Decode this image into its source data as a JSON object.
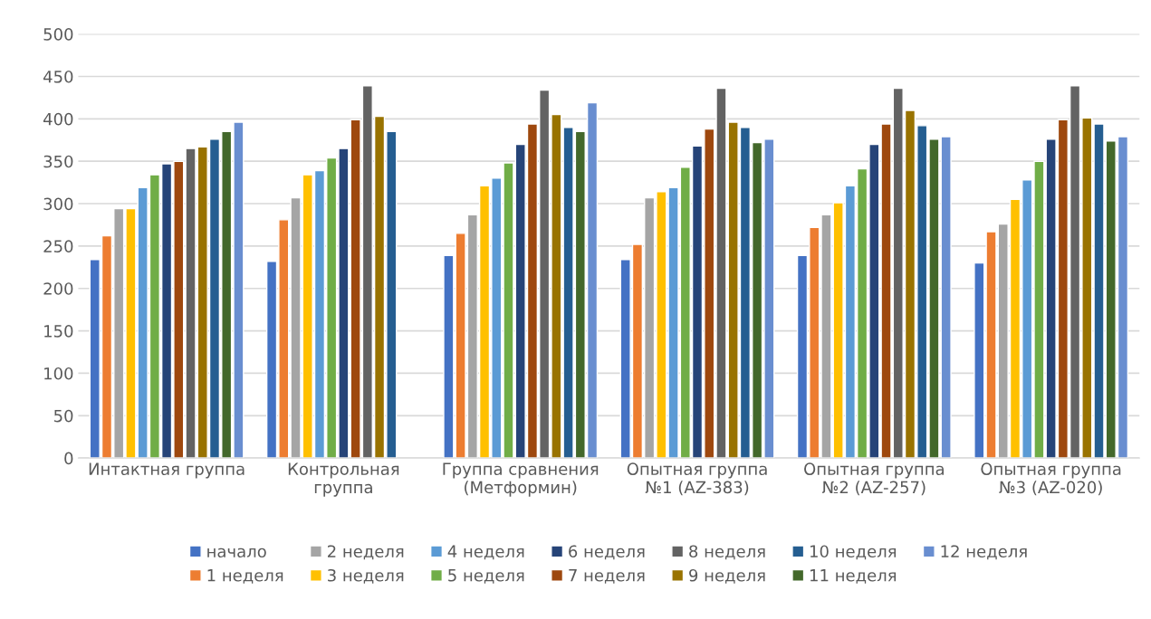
{
  "chart_data": {
    "type": "bar",
    "categories": [
      "Интактная группа",
      "Контрольная\nгруппа",
      "Группа сравнения\n(Метформин)",
      "Опытная группа\n№1 (AZ-383)",
      "Опытная группа\n№2 (AZ-257)",
      "Опытная группа\n№3 (AZ-020)"
    ],
    "series": [
      {
        "name": "начало",
        "color": "#4472c4",
        "values": [
          234,
          232,
          239,
          234,
          239,
          230
        ]
      },
      {
        "name": "1 неделя",
        "color": "#ed7d31",
        "values": [
          262,
          281,
          265,
          252,
          272,
          267
        ]
      },
      {
        "name": "2 неделя",
        "color": "#a5a5a5",
        "values": [
          294,
          307,
          287,
          307,
          287,
          276
        ]
      },
      {
        "name": "3 неделя",
        "color": "#ffc000",
        "values": [
          294,
          334,
          321,
          314,
          301,
          305
        ]
      },
      {
        "name": "4 неделя",
        "color": "#5b9bd5",
        "values": [
          319,
          339,
          330,
          319,
          321,
          328
        ]
      },
      {
        "name": "5 неделя",
        "color": "#70ad47",
        "values": [
          334,
          354,
          348,
          343,
          341,
          350
        ]
      },
      {
        "name": "6 неделя",
        "color": "#264478",
        "values": [
          347,
          365,
          370,
          368,
          370,
          376
        ]
      },
      {
        "name": "7 неделя",
        "color": "#9e480e",
        "values": [
          350,
          399,
          394,
          388,
          394,
          399
        ]
      },
      {
        "name": "8 неделя",
        "color": "#636363",
        "values": [
          365,
          439,
          434,
          436,
          436,
          439
        ]
      },
      {
        "name": "9 неделя",
        "color": "#997300",
        "values": [
          367,
          403,
          405,
          396,
          410,
          401
        ]
      },
      {
        "name": "10 неделя",
        "color": "#255e91",
        "values": [
          376,
          385,
          390,
          390,
          392,
          394
        ]
      },
      {
        "name": "11 неделя",
        "color": "#43682b",
        "values": [
          385,
          null,
          385,
          372,
          376,
          374
        ]
      },
      {
        "name": "12 неделя",
        "color": "#698ed0",
        "values": [
          396,
          null,
          419,
          376,
          379,
          379
        ]
      }
    ],
    "ylim": [
      0,
      500
    ],
    "yticks": [
      0,
      50,
      100,
      150,
      200,
      250,
      300,
      350,
      400,
      450,
      500
    ],
    "grid": "y",
    "legend": "bottom"
  }
}
